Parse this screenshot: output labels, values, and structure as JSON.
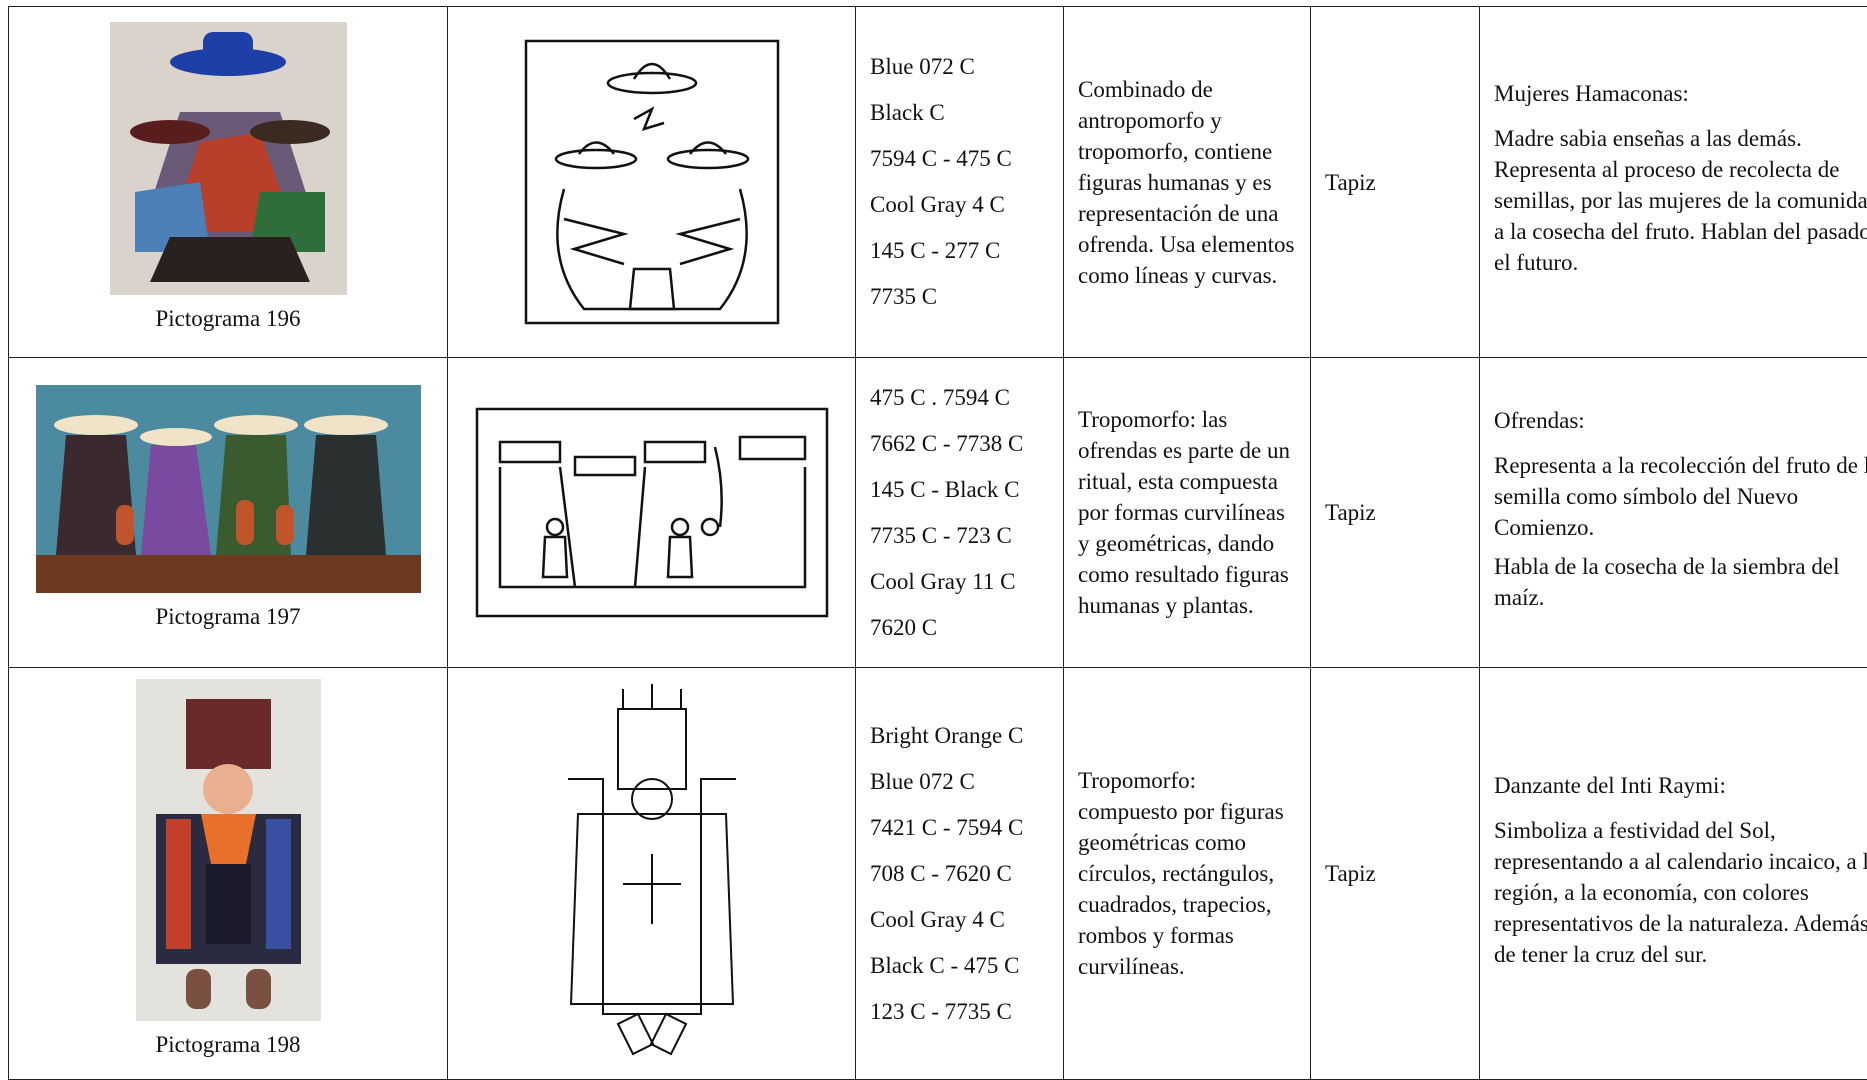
{
  "table": {
    "rows": [
      {
        "caption": "Pictograma 196",
        "colors": [
          "Blue 072 C",
          "Black C",
          "7594 C - 475 C",
          "Cool Gray 4 C",
          "145 C - 277 C",
          "7735 C"
        ],
        "description": "Combinado de antropomorfo y tropomorfo, contiene figuras humanas y es representación de una ofrenda.  Usa elementos como líneas y curvas.",
        "technique": "Tapiz",
        "meaning_title": "Mujeres Hamaconas:",
        "meaning": [
          "Madre sabia enseñas a las demás. Representa al proceso de recolecta de semillas, por las mujeres de la comunidad, a la cosecha del fruto. Hablan del pasado y el futuro."
        ]
      },
      {
        "caption": "Pictograma 197",
        "colors": [
          "475 C . 7594 C",
          "7662 C - 7738 C",
          "145 C - Black C",
          "7735 C - 723 C",
          "Cool Gray 11 C",
          "7620 C"
        ],
        "description": "Tropomorfo: las ofrendas es parte de un ritual, esta compuesta por formas curvilíneas y geométricas, dando como resultado figuras humanas y plantas.",
        "technique": "Tapiz",
        "meaning_title": "Ofrendas:",
        "meaning": [
          "Representa a la recolección del fruto de la semilla como símbolo del Nuevo Comienzo.",
          "Habla de la cosecha de la siembra del maíz."
        ]
      },
      {
        "caption": "Pictograma 198",
        "colors": [
          "Bright Orange C",
          "Blue 072 C",
          "7421 C - 7594 C",
          "708 C - 7620 C",
          "Cool Gray 4 C",
          "Black C - 475 C",
          "123 C - 7735 C"
        ],
        "description": "Tropomorfo: compuesto por figuras geométricas como círculos, rectángulos, cuadrados, trapecios, rombos y formas curvilíneas.",
        "technique": "Tapiz",
        "meaning_title": "Danzante del Inti Raymi:",
        "meaning": [
          "Simboliza a festividad del Sol, representando a al calendario incaico, a la región, a la economía, con colores representativos de la naturaleza. Además de tener la cruz del sur."
        ]
      }
    ]
  }
}
